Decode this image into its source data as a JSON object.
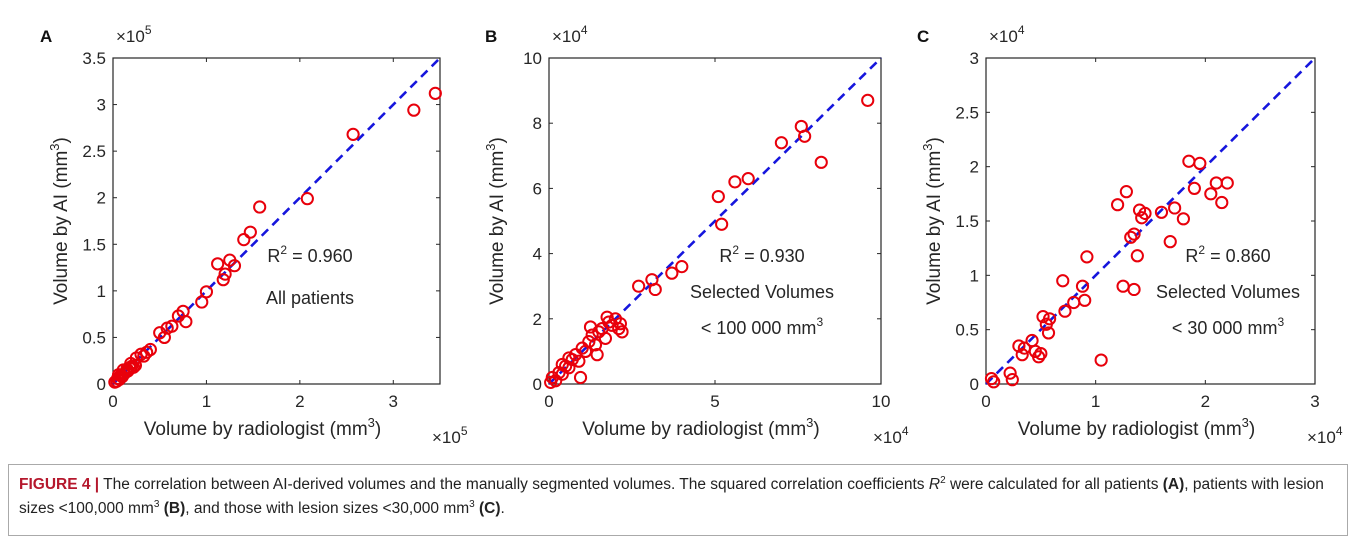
{
  "chart_data": [
    {
      "type": "scatter",
      "panel_label": "A",
      "xlabel": "Volume by radiologist (mm",
      "ylabel": "Volume by AI (mm",
      "label_unit_sup": "3",
      "x_multiplier_base": "×10",
      "x_multiplier_exp": "5",
      "y_multiplier_base": "×10",
      "y_multiplier_exp": "5",
      "xlim": [
        0,
        3.5
      ],
      "ylim": [
        0,
        3.5
      ],
      "xticks": [
        0,
        1,
        2,
        3
      ],
      "xtick_labels": [
        "0",
        "1",
        "2",
        "3"
      ],
      "yticks": [
        0,
        0.5,
        1,
        1.5,
        2,
        2.5,
        3,
        3.5
      ],
      "ytick_labels": [
        "0",
        "0.5",
        "1",
        "1.5",
        "2",
        "2.5",
        "3",
        "3.5"
      ],
      "r2_prefix": "R",
      "r2_exp": "2",
      "r2_value": " = 0.960",
      "annotation_lines": [
        "All patients"
      ],
      "identity_line": [
        [
          0,
          0
        ],
        [
          3.5,
          3.5
        ]
      ],
      "points": [
        [
          0.02,
          0.02
        ],
        [
          0.04,
          0.03
        ],
        [
          0.05,
          0.06
        ],
        [
          0.07,
          0.05
        ],
        [
          0.08,
          0.09
        ],
        [
          0.1,
          0.08
        ],
        [
          0.12,
          0.11
        ],
        [
          0.14,
          0.13
        ],
        [
          0.15,
          0.16
        ],
        [
          0.16,
          0.14
        ],
        [
          0.18,
          0.17
        ],
        [
          0.2,
          0.19
        ],
        [
          0.22,
          0.18
        ],
        [
          0.24,
          0.2
        ],
        [
          0.06,
          0.1
        ],
        [
          0.11,
          0.15
        ],
        [
          0.19,
          0.22
        ],
        [
          0.25,
          0.28
        ],
        [
          0.3,
          0.32
        ],
        [
          0.33,
          0.3
        ],
        [
          0.36,
          0.34
        ],
        [
          0.4,
          0.37
        ],
        [
          0.5,
          0.55
        ],
        [
          0.55,
          0.5
        ],
        [
          0.58,
          0.6
        ],
        [
          0.63,
          0.62
        ],
        [
          0.7,
          0.73
        ],
        [
          0.75,
          0.78
        ],
        [
          0.78,
          0.67
        ],
        [
          0.95,
          0.88
        ],
        [
          1.0,
          0.99
        ],
        [
          1.12,
          1.29
        ],
        [
          1.18,
          1.12
        ],
        [
          1.2,
          1.18
        ],
        [
          1.25,
          1.33
        ],
        [
          1.3,
          1.27
        ],
        [
          1.4,
          1.55
        ],
        [
          1.47,
          1.63
        ],
        [
          1.57,
          1.9
        ],
        [
          2.08,
          1.99
        ],
        [
          2.57,
          2.68
        ],
        [
          3.22,
          2.94
        ],
        [
          3.45,
          3.12
        ]
      ],
      "series_color": "#e8000b",
      "line_color": "#1616dd"
    },
    {
      "type": "scatter",
      "panel_label": "B",
      "xlabel": "Volume by radiologist (mm",
      "ylabel": "Volume by AI (mm",
      "label_unit_sup": "3",
      "x_multiplier_base": "×10",
      "x_multiplier_exp": "4",
      "y_multiplier_base": "×10",
      "y_multiplier_exp": "4",
      "xlim": [
        0,
        10
      ],
      "ylim": [
        0,
        10
      ],
      "xticks": [
        0,
        5,
        10
      ],
      "xtick_labels": [
        "0",
        "5",
        "10"
      ],
      "yticks": [
        0,
        2,
        4,
        6,
        8,
        10
      ],
      "ytick_labels": [
        "0",
        "2",
        "4",
        "6",
        "8",
        "10"
      ],
      "r2_prefix": "R",
      "r2_exp": "2",
      "r2_value": " = 0.930",
      "annotation_lines": [
        "Selected Volumes",
        "< 100 000 mm"
      ],
      "annotation_sup": "3",
      "identity_line": [
        [
          0,
          0
        ],
        [
          10,
          10
        ]
      ],
      "points": [
        [
          0.05,
          0.05
        ],
        [
          0.1,
          0.2
        ],
        [
          0.2,
          0.1
        ],
        [
          0.3,
          0.35
        ],
        [
          0.4,
          0.3
        ],
        [
          0.5,
          0.55
        ],
        [
          0.6,
          0.5
        ],
        [
          0.7,
          0.75
        ],
        [
          0.8,
          0.9
        ],
        [
          0.9,
          0.7
        ],
        [
          1.0,
          1.1
        ],
        [
          1.1,
          1.0
        ],
        [
          0.95,
          0.2
        ],
        [
          1.2,
          1.3
        ],
        [
          1.3,
          1.5
        ],
        [
          1.4,
          1.2
        ],
        [
          1.5,
          1.6
        ],
        [
          1.6,
          1.7
        ],
        [
          1.7,
          1.4
        ],
        [
          1.8,
          1.9
        ],
        [
          1.9,
          1.8
        ],
        [
          2.0,
          2.0
        ],
        [
          2.1,
          1.7
        ],
        [
          2.2,
          1.6
        ],
        [
          1.25,
          1.75
        ],
        [
          1.45,
          0.9
        ],
        [
          0.6,
          0.8
        ],
        [
          0.4,
          0.6
        ],
        [
          1.75,
          2.05
        ],
        [
          2.15,
          1.85
        ],
        [
          2.7,
          3.0
        ],
        [
          3.1,
          3.2
        ],
        [
          3.2,
          2.9
        ],
        [
          3.7,
          3.4
        ],
        [
          4.0,
          3.6
        ],
        [
          5.1,
          5.75
        ],
        [
          5.2,
          4.9
        ],
        [
          5.6,
          6.2
        ],
        [
          6.0,
          6.3
        ],
        [
          7.0,
          7.4
        ],
        [
          7.6,
          7.9
        ],
        [
          7.7,
          7.6
        ],
        [
          8.2,
          6.8
        ],
        [
          9.6,
          8.7
        ]
      ],
      "series_color": "#e8000b",
      "line_color": "#1616dd"
    },
    {
      "type": "scatter",
      "panel_label": "C",
      "xlabel": "Volume by radiologist (mm",
      "ylabel": "Volume by AI (mm",
      "label_unit_sup": "3",
      "x_multiplier_base": "×10",
      "x_multiplier_exp": "4",
      "y_multiplier_base": "×10",
      "y_multiplier_exp": "4",
      "xlim": [
        0,
        3
      ],
      "ylim": [
        0,
        3
      ],
      "xticks": [
        0,
        1,
        2,
        3
      ],
      "xtick_labels": [
        "0",
        "1",
        "2",
        "3"
      ],
      "yticks": [
        0,
        0.5,
        1,
        1.5,
        2,
        2.5,
        3
      ],
      "ytick_labels": [
        "0",
        "0.5",
        "1",
        "1.5",
        "2",
        "2.5",
        "3"
      ],
      "r2_prefix": "R",
      "r2_exp": "2",
      "r2_value": " = 0.860",
      "annotation_lines": [
        "Selected Volumes",
        "< 30 000 mm"
      ],
      "annotation_sup": "3",
      "identity_line": [
        [
          0,
          0
        ],
        [
          3,
          3
        ]
      ],
      "points": [
        [
          0.05,
          0.05
        ],
        [
          0.07,
          0.02
        ],
        [
          0.22,
          0.1
        ],
        [
          0.24,
          0.04
        ],
        [
          0.3,
          0.35
        ],
        [
          0.33,
          0.27
        ],
        [
          0.35,
          0.33
        ],
        [
          0.42,
          0.4
        ],
        [
          0.45,
          0.3
        ],
        [
          0.48,
          0.25
        ],
        [
          0.5,
          0.28
        ],
        [
          0.52,
          0.62
        ],
        [
          0.55,
          0.55
        ],
        [
          0.57,
          0.47
        ],
        [
          0.58,
          0.6
        ],
        [
          0.7,
          0.95
        ],
        [
          0.72,
          0.67
        ],
        [
          0.8,
          0.75
        ],
        [
          0.88,
          0.9
        ],
        [
          0.9,
          0.77
        ],
        [
          0.92,
          1.17
        ],
        [
          1.05,
          0.22
        ],
        [
          1.2,
          1.65
        ],
        [
          1.25,
          0.9
        ],
        [
          1.28,
          1.77
        ],
        [
          1.32,
          1.35
        ],
        [
          1.35,
          1.38
        ],
        [
          1.35,
          0.87
        ],
        [
          1.38,
          1.18
        ],
        [
          1.4,
          1.6
        ],
        [
          1.42,
          1.53
        ],
        [
          1.45,
          1.57
        ],
        [
          1.6,
          1.58
        ],
        [
          1.68,
          1.31
        ],
        [
          1.72,
          1.62
        ],
        [
          1.8,
          1.52
        ],
        [
          1.85,
          2.05
        ],
        [
          1.9,
          1.8
        ],
        [
          1.95,
          2.03
        ],
        [
          2.05,
          1.75
        ],
        [
          2.1,
          1.85
        ],
        [
          2.15,
          1.67
        ],
        [
          2.2,
          1.85
        ]
      ],
      "series_color": "#e8000b",
      "line_color": "#1616dd"
    }
  ],
  "caption": {
    "label": "FIGURE 4 |",
    "part1": " The correlation between AI-derived volumes and the manually segmented volumes. The squared correlation coefficients ",
    "r_italic": "R",
    "r_exp": "2",
    "part2": " were calculated for all patients ",
    "ref_a": "(A)",
    "part3": ", patients with lesion sizes <100,000 mm",
    "exp_b": "3",
    "ref_b": "(B)",
    "part4": ", and those with lesion sizes <30,000 mm",
    "exp_c": "3",
    "ref_c": "(C)",
    "part5": "."
  }
}
